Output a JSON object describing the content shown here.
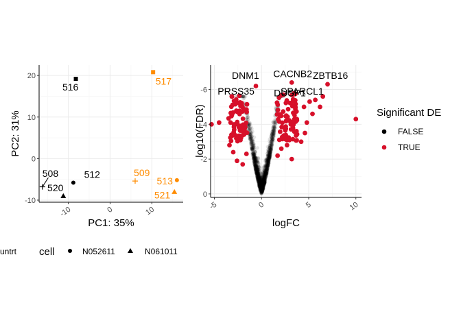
{
  "chart_data": [
    {
      "type": "scatter",
      "xlabel": "PC1: 35%",
      "ylabel": "PC2: 31%",
      "xlim": [
        -17,
        17.5
      ],
      "ylim": [
        -10.5,
        22.5
      ],
      "x_ticks": [
        "-10",
        "0",
        "10"
      ],
      "y_ticks": [
        "-10",
        "0",
        "10",
        "20"
      ],
      "grid": true,
      "colors": {
        "untrt": "#000000",
        "trt": "#FF8C00"
      },
      "points": [
        {
          "label": "516",
          "x": -8.2,
          "y": 19.2,
          "shape": "square",
          "group": "untrt",
          "label_x": -9.5,
          "label_y": 17.2
        },
        {
          "label": "517",
          "x": 10.3,
          "y": 20.8,
          "shape": "square",
          "group": "trt",
          "label_x": 12.8,
          "label_y": 18.6
        },
        {
          "label": "512",
          "x": -8.8,
          "y": -5.8,
          "shape": "circle",
          "group": "untrt",
          "label_x": -4.3,
          "label_y": -3.8
        },
        {
          "label": "508",
          "x": -16.2,
          "y": -6.8,
          "shape": "cross",
          "group": "untrt",
          "label_x": -14.3,
          "label_y": -3.6
        },
        {
          "label": "520",
          "x": -11.2,
          "y": -9.0,
          "shape": "triangle",
          "group": "untrt",
          "label_x": -13.1,
          "label_y": -7.0
        },
        {
          "label": "509",
          "x": 6.0,
          "y": -5.4,
          "shape": "cross",
          "group": "trt",
          "label_x": 7.6,
          "label_y": -3.4
        },
        {
          "label": "513",
          "x": 16.0,
          "y": -5.2,
          "shape": "circle",
          "group": "trt",
          "label_x": 13.1,
          "label_y": -5.4
        },
        {
          "label": "521",
          "x": 15.4,
          "y": -8.0,
          "shape": "triangle",
          "group": "trt",
          "label_x": 12.5,
          "label_y": -8.8
        }
      ]
    },
    {
      "type": "scatter",
      "xlabel": "logFC",
      "ylabel": "log10(FDR)",
      "xlim": [
        -5.4,
        10.6
      ],
      "ylim": [
        0.2,
        -7.4
      ],
      "x_ticks": [
        "-5",
        "0",
        "5",
        "10"
      ],
      "y_ticks": [
        "-6",
        "-4",
        "-2",
        "0"
      ],
      "grid": true,
      "series": [
        {
          "name": "FALSE",
          "color": "#000000"
        },
        {
          "name": "TRUE",
          "color": "#D7102A"
        }
      ],
      "labeled_genes": [
        {
          "label": "DNM1",
          "x": -1.7,
          "y": -6.8
        },
        {
          "label": "CACNB2",
          "x": 3.3,
          "y": -6.9
        },
        {
          "label": "ZBTB16",
          "x": 7.3,
          "y": -6.8
        },
        {
          "label": "PRSS35",
          "x": -2.7,
          "y": -5.9
        },
        {
          "label": "DUSP1",
          "x": 3.0,
          "y": -5.8
        },
        {
          "label": "SPARCL1",
          "x": 4.3,
          "y": -5.9
        }
      ]
    }
  ],
  "legend_left": {
    "clipped_label": "untrt",
    "title": "cell",
    "items": [
      {
        "label": "N052611",
        "shape": "circle"
      },
      {
        "label": "N061011",
        "shape": "triangle"
      }
    ]
  },
  "legend_right": {
    "title": "Significant DE",
    "items": [
      {
        "label": "FALSE",
        "color": "#000000"
      },
      {
        "label": "TRUE",
        "color": "#D7102A"
      }
    ]
  }
}
